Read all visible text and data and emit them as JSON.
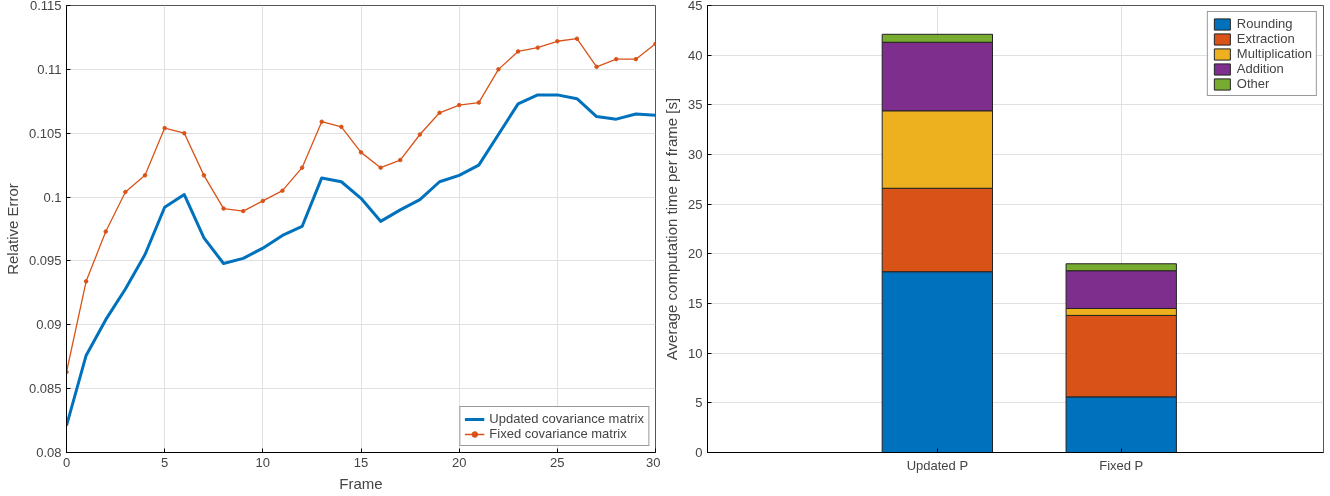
{
  "chart_data": [
    {
      "type": "line",
      "xlabel": "Frame",
      "ylabel": "Relative Error",
      "x": [
        0,
        1,
        2,
        3,
        4,
        5,
        6,
        7,
        8,
        9,
        10,
        11,
        12,
        13,
        14,
        15,
        16,
        17,
        18,
        19,
        20,
        21,
        22,
        23,
        24,
        25,
        26,
        27,
        28,
        29,
        30
      ],
      "series": [
        {
          "name": "Updated covariance matrix",
          "color": "#0072bd",
          "marker": "none",
          "values": [
            0.0821,
            0.0876,
            0.0904,
            0.0928,
            0.0955,
            0.0992,
            0.1002,
            0.0968,
            0.0948,
            0.0952,
            0.096,
            0.097,
            0.0977,
            0.1015,
            0.1012,
            0.0999,
            0.0981,
            0.099,
            0.0998,
            0.1012,
            0.1017,
            0.1025,
            0.1049,
            0.1073,
            0.108,
            0.108,
            0.1077,
            0.1063,
            0.1061,
            0.1065,
            0.1064
          ]
        },
        {
          "name": "Fixed covariance matrix",
          "color": "#d95319",
          "marker": "circle",
          "values": [
            0.0863,
            0.0934,
            0.0973,
            0.1004,
            0.1017,
            0.1054,
            0.105,
            0.1017,
            0.0991,
            0.0989,
            0.0997,
            0.1005,
            0.1023,
            0.1059,
            0.1055,
            0.1035,
            0.1023,
            0.1029,
            0.1049,
            0.1066,
            0.1072,
            0.1074,
            0.11,
            0.1114,
            0.1117,
            0.1122,
            0.1124,
            0.1102,
            0.1108,
            0.1108,
            0.112
          ]
        }
      ],
      "xlim": [
        0,
        30
      ],
      "xticks": [
        0,
        5,
        10,
        15,
        20,
        25,
        30
      ],
      "ylim": [
        0.08,
        0.115
      ],
      "yticks": [
        0.08,
        0.085,
        0.09,
        0.095,
        0.1,
        0.105,
        0.11,
        0.115
      ],
      "grid": true,
      "legend": "bottom right",
      "line_style": "solid"
    },
    {
      "type": "bar",
      "stacked": true,
      "ylabel": "Average computation time per frame [s]",
      "categories": [
        "Updated P",
        "Fixed P"
      ],
      "series": [
        {
          "name": "Rounding",
          "color": "#0072bd",
          "values": [
            18.2,
            5.6
          ]
        },
        {
          "name": "Extraction",
          "color": "#d95319",
          "values": [
            8.4,
            8.2
          ]
        },
        {
          "name": "Multiplication",
          "color": "#edb120",
          "values": [
            7.8,
            0.7
          ]
        },
        {
          "name": "Addition",
          "color": "#7e2f8e",
          "values": [
            6.9,
            3.8
          ]
        },
        {
          "name": "Other",
          "color": "#77ac30",
          "values": [
            0.8,
            0.7
          ]
        }
      ],
      "ylim": [
        0,
        45
      ],
      "yticks": [
        0,
        5,
        10,
        15,
        20,
        25,
        30,
        35,
        40,
        45
      ],
      "grid": true,
      "legend": "top right"
    }
  ]
}
